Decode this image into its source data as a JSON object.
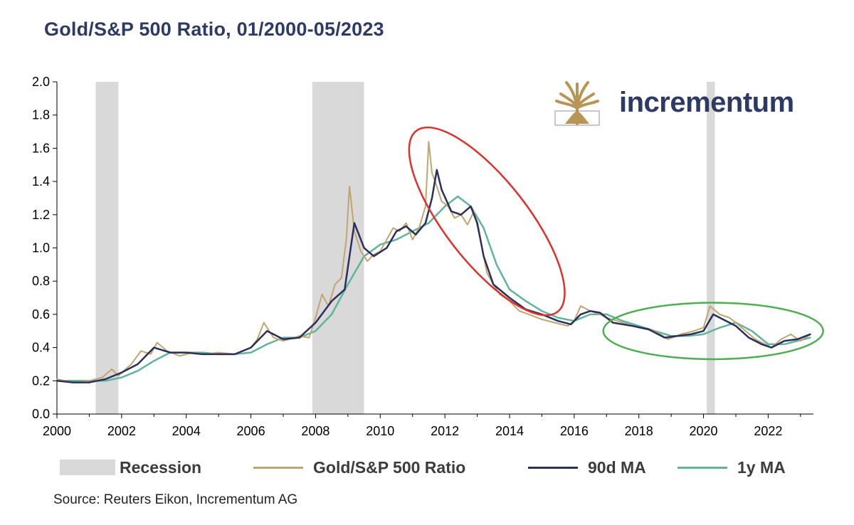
{
  "title": "Gold/S&P 500 Ratio, 01/2000-05/2023",
  "source": "Source: Reuters Eikon, Incrementum AG",
  "logo": {
    "text": "incrementum"
  },
  "colors": {
    "ratio": "#c2a56e",
    "ma90": "#2a2f5e",
    "ma1y": "#5fb59a",
    "recession": "#d9d9d9",
    "ellipse_red": "#e0302b",
    "ellipse_green": "#4caf50"
  },
  "legend": {
    "recession": "Recession",
    "ratio": "Gold/S&P 500 Ratio",
    "ma90": "90d MA",
    "ma1y": "1y MA"
  },
  "chart_data": {
    "type": "line",
    "title": "Gold/S&P 500 Ratio, 01/2000-05/2023",
    "xlabel": "",
    "ylabel": "",
    "xlim": [
      2000,
      2023.4
    ],
    "ylim": [
      0,
      2.0
    ],
    "x_ticks": [
      "2000",
      "2002",
      "2004",
      "2006",
      "2008",
      "2010",
      "2012",
      "2014",
      "2016",
      "2018",
      "2020",
      "2022"
    ],
    "y_ticks": [
      "0.0",
      "0.2",
      "0.4",
      "0.6",
      "0.8",
      "1.0",
      "1.2",
      "1.4",
      "1.6",
      "1.8",
      "2.0"
    ],
    "recessions": [
      {
        "start": 2001.2,
        "end": 2001.9
      },
      {
        "start": 2007.9,
        "end": 2009.5
      },
      {
        "start": 2020.1,
        "end": 2020.35
      }
    ],
    "series": [
      {
        "name": "Gold/S&P 500 Ratio",
        "x": [
          2000.0,
          2000.5,
          2001.0,
          2001.4,
          2001.7,
          2001.9,
          2002.3,
          2002.6,
          2002.9,
          2003.1,
          2003.4,
          2003.8,
          2004.2,
          2004.6,
          2005.0,
          2005.5,
          2006.0,
          2006.2,
          2006.4,
          2006.7,
          2007.0,
          2007.5,
          2007.8,
          2008.0,
          2008.2,
          2008.4,
          2008.6,
          2008.8,
          2008.95,
          2009.05,
          2009.2,
          2009.4,
          2009.6,
          2009.8,
          2010.0,
          2010.2,
          2010.4,
          2010.6,
          2010.8,
          2011.0,
          2011.2,
          2011.4,
          2011.5,
          2011.6,
          2011.7,
          2011.9,
          2012.1,
          2012.3,
          2012.5,
          2012.7,
          2012.9,
          2013.1,
          2013.3,
          2013.5,
          2013.7,
          2014.0,
          2014.3,
          2014.6,
          2015.0,
          2015.4,
          2015.8,
          2016.0,
          2016.2,
          2016.5,
          2016.8,
          2017.0,
          2017.5,
          2018.0,
          2018.5,
          2018.9,
          2019.3,
          2019.7,
          2020.0,
          2020.2,
          2020.5,
          2020.8,
          2021.0,
          2021.3,
          2021.6,
          2021.9,
          2022.1,
          2022.4,
          2022.7,
          2023.0,
          2023.3
        ],
        "values": [
          0.21,
          0.19,
          0.2,
          0.22,
          0.27,
          0.23,
          0.3,
          0.38,
          0.36,
          0.43,
          0.38,
          0.35,
          0.37,
          0.36,
          0.37,
          0.36,
          0.4,
          0.45,
          0.55,
          0.46,
          0.44,
          0.47,
          0.46,
          0.58,
          0.72,
          0.65,
          0.78,
          0.82,
          1.05,
          1.37,
          1.1,
          0.98,
          0.92,
          0.96,
          0.98,
          1.05,
          1.12,
          1.1,
          1.15,
          1.05,
          1.12,
          1.25,
          1.64,
          1.45,
          1.4,
          1.28,
          1.25,
          1.18,
          1.2,
          1.14,
          1.22,
          1.05,
          0.85,
          0.78,
          0.72,
          0.68,
          0.62,
          0.6,
          0.57,
          0.55,
          0.53,
          0.56,
          0.65,
          0.62,
          0.6,
          0.58,
          0.55,
          0.52,
          0.5,
          0.45,
          0.48,
          0.5,
          0.52,
          0.65,
          0.6,
          0.58,
          0.55,
          0.5,
          0.45,
          0.42,
          0.4,
          0.45,
          0.48,
          0.44,
          0.48
        ]
      },
      {
        "name": "90d MA",
        "x": [
          2000.0,
          2000.5,
          2001.0,
          2001.5,
          2002.0,
          2002.5,
          2003.0,
          2003.5,
          2004.0,
          2004.5,
          2005.0,
          2005.5,
          2006.0,
          2006.5,
          2007.0,
          2007.5,
          2008.0,
          2008.5,
          2008.9,
          2009.2,
          2009.5,
          2009.8,
          2010.2,
          2010.5,
          2010.8,
          2011.1,
          2011.4,
          2011.6,
          2011.75,
          2011.9,
          2012.2,
          2012.5,
          2012.8,
          2013.0,
          2013.2,
          2013.5,
          2014.0,
          2014.5,
          2015.0,
          2015.5,
          2015.9,
          2016.2,
          2016.5,
          2016.8,
          2017.2,
          2017.8,
          2018.3,
          2018.8,
          2019.2,
          2019.6,
          2020.0,
          2020.3,
          2020.6,
          2021.0,
          2021.4,
          2021.8,
          2022.1,
          2022.5,
          2022.9,
          2023.3
        ],
        "values": [
          0.2,
          0.19,
          0.19,
          0.21,
          0.25,
          0.3,
          0.4,
          0.37,
          0.37,
          0.36,
          0.36,
          0.36,
          0.4,
          0.5,
          0.45,
          0.46,
          0.55,
          0.68,
          0.75,
          1.15,
          1.0,
          0.95,
          1.0,
          1.1,
          1.13,
          1.08,
          1.15,
          1.3,
          1.47,
          1.35,
          1.22,
          1.2,
          1.25,
          1.15,
          0.95,
          0.78,
          0.7,
          0.63,
          0.6,
          0.56,
          0.54,
          0.6,
          0.62,
          0.61,
          0.55,
          0.53,
          0.51,
          0.46,
          0.47,
          0.48,
          0.5,
          0.6,
          0.57,
          0.53,
          0.46,
          0.42,
          0.4,
          0.44,
          0.45,
          0.48
        ]
      },
      {
        "name": "1y MA",
        "x": [
          2000.0,
          2000.5,
          2001.0,
          2001.5,
          2002.0,
          2002.5,
          2003.0,
          2003.5,
          2004.0,
          2004.5,
          2005.0,
          2005.5,
          2006.0,
          2006.5,
          2007.0,
          2007.5,
          2008.0,
          2008.5,
          2009.0,
          2009.5,
          2010.0,
          2010.5,
          2011.0,
          2011.5,
          2012.0,
          2012.4,
          2012.8,
          2013.2,
          2013.6,
          2014.0,
          2014.5,
          2015.0,
          2015.5,
          2016.0,
          2016.5,
          2017.0,
          2017.5,
          2018.0,
          2018.5,
          2019.0,
          2019.5,
          2020.0,
          2020.5,
          2021.0,
          2021.5,
          2022.0,
          2022.5,
          2023.3
        ],
        "values": [
          0.2,
          0.2,
          0.2,
          0.2,
          0.22,
          0.26,
          0.32,
          0.37,
          0.37,
          0.37,
          0.36,
          0.36,
          0.37,
          0.42,
          0.46,
          0.46,
          0.5,
          0.6,
          0.78,
          0.95,
          1.02,
          1.05,
          1.1,
          1.15,
          1.25,
          1.31,
          1.25,
          1.12,
          0.9,
          0.75,
          0.68,
          0.62,
          0.58,
          0.56,
          0.6,
          0.6,
          0.56,
          0.53,
          0.5,
          0.47,
          0.47,
          0.48,
          0.52,
          0.55,
          0.5,
          0.42,
          0.42,
          0.46
        ]
      }
    ],
    "annotations": [
      {
        "shape": "ellipse",
        "color": "red",
        "cx": 2013.3,
        "cy": 1.16,
        "rx_years": 3.2,
        "ry_value": 0.28,
        "angle_deg": 52
      },
      {
        "shape": "ellipse",
        "color": "green",
        "cx": 2020.3,
        "cy": 0.5,
        "rx_years": 3.4,
        "ry_value": 0.17,
        "angle_deg": 0
      }
    ]
  }
}
